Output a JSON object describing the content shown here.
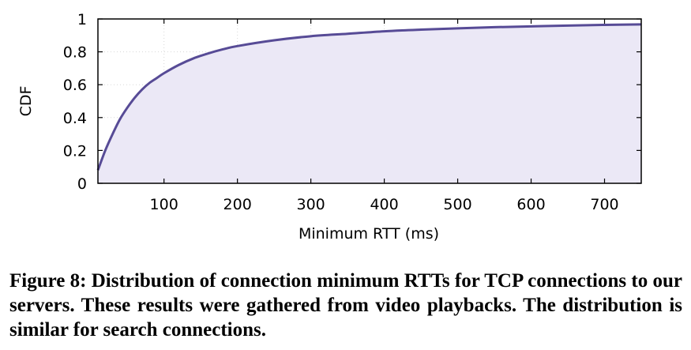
{
  "chart_data": {
    "type": "area",
    "title": "",
    "xlabel": "Minimum RTT (ms)",
    "ylabel": "CDF",
    "xlim": [
      10,
      750
    ],
    "ylim": [
      0,
      1
    ],
    "xticks": [
      100,
      200,
      300,
      400,
      500,
      600,
      700
    ],
    "yticks": [
      0,
      0.2,
      0.4,
      0.6,
      0.8,
      1
    ],
    "ytick_labels": [
      "0",
      "0.2",
      "0.4",
      "0.6",
      "0.8",
      "1"
    ],
    "grid": true,
    "legend": "none",
    "series": [
      {
        "x": [
          10,
          20,
          30,
          40,
          50,
          60,
          70,
          80,
          90,
          100,
          120,
          140,
          160,
          180,
          200,
          250,
          300,
          350,
          400,
          450,
          500,
          550,
          600,
          650,
          700,
          750
        ],
        "y": [
          0.08,
          0.2,
          0.3,
          0.39,
          0.46,
          0.52,
          0.57,
          0.61,
          0.64,
          0.67,
          0.72,
          0.76,
          0.79,
          0.815,
          0.835,
          0.87,
          0.895,
          0.91,
          0.925,
          0.935,
          0.943,
          0.95,
          0.955,
          0.96,
          0.964,
          0.967
        ]
      }
    ],
    "colors": {
      "line": "#574b96",
      "fill": "#ebe8f6",
      "grid": "#d8d8d8"
    }
  },
  "caption": "Figure 8: Distribution of connection minimum RTTs for TCP connections to our servers. These results were gathered from video playbacks. The distribution is similar for search connections."
}
